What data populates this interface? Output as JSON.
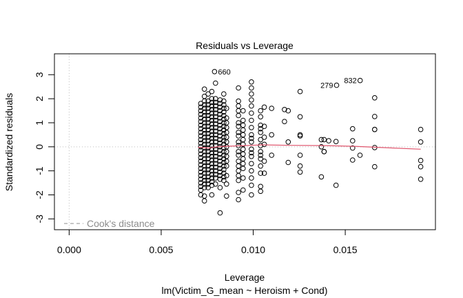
{
  "chart_data": {
    "type": "scatter",
    "title": "Residuals vs Leverage",
    "xlabel": "Leverage",
    "subtitle": "lm(Victim_G_mean ~ Heroism + Cond)",
    "ylabel": "Standardized residuals",
    "xlim": [
      -0.0008,
      0.0199
    ],
    "ylim": [
      -3.45,
      3.87
    ],
    "x_ticks": [
      {
        "value": 0.0,
        "label": "0.000"
      },
      {
        "value": 0.005,
        "label": "0.005"
      },
      {
        "value": 0.01,
        "label": "0.010"
      },
      {
        "value": 0.015,
        "label": "0.015"
      }
    ],
    "y_ticks": [
      {
        "value": -3,
        "label": "-3"
      },
      {
        "value": -2,
        "label": "-2"
      },
      {
        "value": -1,
        "label": "-1"
      },
      {
        "value": 0,
        "label": "0"
      },
      {
        "value": 1,
        "label": "1"
      },
      {
        "value": 2,
        "label": "2"
      },
      {
        "value": 3,
        "label": "3"
      }
    ],
    "reference_lines": {
      "h": 0,
      "v": 0
    },
    "legend": {
      "label": "Cook's distance",
      "position": "bottom-left",
      "style": "dashed",
      "color": "#8c8c8c"
    },
    "smooth_color": "#df536b",
    "smooth": [
      [
        0.007,
        -0.02
      ],
      [
        0.0076,
        -0.05
      ],
      [
        0.008,
        0.0
      ],
      [
        0.0085,
        0.02
      ],
      [
        0.0095,
        0.05
      ],
      [
        0.0105,
        0.08
      ],
      [
        0.012,
        0.06
      ],
      [
        0.014,
        0.05
      ],
      [
        0.0155,
        0.02
      ],
      [
        0.017,
        -0.03
      ],
      [
        0.0191,
        -0.1
      ]
    ],
    "labeled_points": [
      {
        "label": "660",
        "x": 0.0079,
        "y": 3.13,
        "side": "right"
      },
      {
        "label": "279",
        "x": 0.01453,
        "y": 2.56,
        "side": "left"
      },
      {
        "label": "832",
        "x": 0.01581,
        "y": 2.76,
        "side": "left"
      }
    ],
    "clusters": [
      {
        "x": 0.00715,
        "ys": [
          1.8,
          1.5,
          1.2,
          0.9,
          0.6,
          0.3,
          0.0,
          -0.3,
          -0.6,
          -0.9,
          -1.2,
          -1.5,
          -1.8,
          1.65,
          1.35,
          1.05,
          0.75,
          0.45,
          0.15,
          -0.15,
          -0.45,
          -0.75,
          -1.05,
          -1.35,
          -1.65,
          -2.0
        ]
      },
      {
        "x": 0.00735,
        "ys": [
          2.4,
          2.1,
          1.9,
          1.6,
          1.3,
          1.0,
          0.7,
          0.4,
          0.1,
          -0.2,
          -0.5,
          -0.8,
          -1.1,
          -1.4,
          -1.7,
          -2.05,
          -2.25,
          1.75,
          1.45,
          1.15,
          0.85,
          0.55,
          0.25,
          -0.05,
          -0.35,
          -0.65,
          -0.95,
          -1.25,
          -1.55
        ]
      },
      {
        "x": 0.00755,
        "ys": [
          2.2,
          1.9,
          1.6,
          1.3,
          1.0,
          0.7,
          0.4,
          0.1,
          -0.2,
          -0.5,
          -0.8,
          -1.1,
          -1.4,
          -1.7,
          1.75,
          1.45,
          1.15,
          0.85,
          0.55,
          0.25,
          -0.05,
          -0.35,
          -0.65,
          -0.95,
          -1.25,
          -1.55
        ]
      },
      {
        "x": 0.00775,
        "ys": [
          2.3,
          2.0,
          1.7,
          1.4,
          1.1,
          0.8,
          0.5,
          0.2,
          -0.1,
          -0.4,
          -0.7,
          -1.0,
          -1.3,
          -1.6,
          -2.0,
          1.85,
          1.55,
          1.25,
          0.95,
          0.65,
          0.35,
          0.05,
          -0.25,
          -0.55,
          -0.85,
          -1.15,
          -1.45
        ]
      },
      {
        "x": 0.00795,
        "ys": [
          2.65,
          2.0,
          1.7,
          1.4,
          1.1,
          0.8,
          0.5,
          0.2,
          -0.1,
          -0.4,
          -0.7,
          -1.0,
          -1.3,
          -1.55,
          1.85,
          1.55,
          1.25,
          0.95,
          0.65,
          0.35,
          0.05,
          -0.25,
          -0.55,
          -0.85,
          -1.15
        ]
      },
      {
        "x": 0.0082,
        "ys": [
          1.95,
          1.65,
          1.35,
          1.05,
          0.75,
          0.45,
          0.15,
          -0.15,
          -0.45,
          -0.75,
          -1.05,
          -1.35,
          -1.7,
          -2.75,
          1.8,
          1.5,
          1.2,
          0.9,
          0.6,
          0.3,
          0.0,
          -0.3,
          -0.6,
          -0.9,
          -1.2
        ]
      },
      {
        "x": 0.0084,
        "ys": [
          2.2,
          1.9,
          1.6,
          1.3,
          1.0,
          0.7,
          0.4,
          0.1,
          -0.2,
          -0.5,
          -0.8,
          -1.1,
          -1.4,
          1.75,
          1.45,
          1.15,
          0.85,
          0.55,
          0.25,
          -0.05,
          -0.35,
          -0.65,
          -0.95,
          -1.25
        ]
      },
      {
        "x": 0.00855,
        "ys": [
          1.6,
          1.2,
          0.8,
          0.4,
          0.0,
          -0.4,
          -0.8,
          -1.2,
          -1.55,
          -2.05,
          1.0,
          0.6,
          0.2,
          -0.2,
          -0.6
        ]
      },
      {
        "x": 0.0092,
        "ys": [
          2.45,
          1.9,
          1.5,
          1.0,
          0.6,
          0.2,
          -0.2,
          -0.6,
          -1.0,
          -1.4,
          -1.9,
          -2.2,
          1.7,
          1.3,
          0.85,
          0.45,
          0.05,
          -0.35,
          -0.8,
          -1.2
        ]
      },
      {
        "x": 0.00945,
        "ys": [
          1.5,
          1.1,
          0.7,
          0.3,
          -0.1,
          -0.5,
          -0.9,
          -1.3,
          -1.8,
          0.9,
          0.5,
          0.1,
          -0.3,
          -0.7
        ]
      },
      {
        "x": 0.0099,
        "ys": [
          2.7,
          2.45,
          2.2,
          1.95,
          1.7,
          1.4,
          1.1,
          0.8,
          0.5,
          0.2,
          -0.1,
          -0.4,
          -0.7,
          -1.0,
          -1.3,
          -1.6,
          -2.0,
          0.35,
          -0.25
        ]
      },
      {
        "x": 0.0104,
        "ys": [
          1.5,
          1.25,
          0.9,
          0.6,
          0.3,
          0.05,
          -0.2,
          -0.5,
          -0.8,
          -1.1,
          -1.85,
          -1.65,
          0.75,
          -0.35
        ]
      },
      {
        "x": 0.0106,
        "ys": [
          1.65,
          0.85,
          0.4,
          0.1,
          -0.6,
          -1.1
        ]
      },
      {
        "x": 0.011,
        "ys": [
          1.6,
          0.5,
          -0.35
        ]
      },
      {
        "x": 0.0117,
        "ys": [
          1.55,
          1.05
        ]
      },
      {
        "x": 0.0119,
        "ys": [
          1.5,
          0.2,
          -0.65
        ]
      },
      {
        "x": 0.01255,
        "ys": [
          2.3,
          1.25,
          0.5,
          0.45,
          -0.35,
          -0.8,
          -1.05
        ]
      },
      {
        "x": 0.0137,
        "ys": [
          0.3,
          0.0,
          -1.25
        ]
      },
      {
        "x": 0.01385,
        "ys": [
          0.3,
          -0.2,
          -0.2
        ]
      },
      {
        "x": 0.0141,
        "ys": [
          0.25
        ]
      },
      {
        "x": 0.0145,
        "ys": [
          0.22,
          -1.6
        ]
      },
      {
        "x": 0.0154,
        "ys": [
          0.75,
          0.25,
          -0.05,
          -0.55
        ]
      },
      {
        "x": 0.0158,
        "ys": [
          -0.35
        ]
      },
      {
        "x": 0.0166,
        "ys": [
          2.04,
          1.26,
          0.72,
          0.72,
          -0.03,
          -0.83
        ]
      },
      {
        "x": 0.0191,
        "ys": [
          0.72,
          0.2,
          -0.57,
          -0.83,
          -1.35
        ]
      }
    ]
  }
}
